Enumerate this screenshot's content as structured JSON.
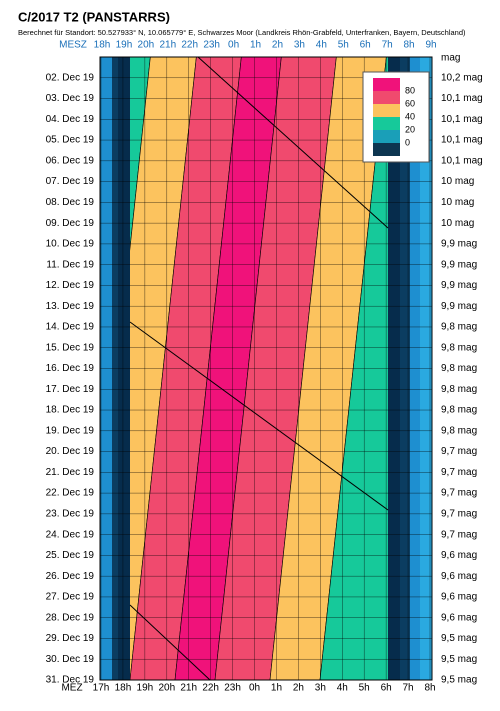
{
  "chart_data": {
    "type": "visibility",
    "title": "C/2017 T2 (PANSTARRS)",
    "subtitle": "Berechnet für Standort: 50.527933° N, 10.065779° E, Schwarzes Moor (Landkreis Rhön-Grabfeld, Unterfranken, Bayern, Deutschland)",
    "x_top_label": "MESZ",
    "x_top_ticks": [
      "18h",
      "19h",
      "20h",
      "21h",
      "22h",
      "23h",
      "0h",
      "1h",
      "2h",
      "3h",
      "4h",
      "5h",
      "6h",
      "7h",
      "8h",
      "9h"
    ],
    "x_label": "MEZ",
    "x_ticks": [
      "17h",
      "18h",
      "19h",
      "20h",
      "21h",
      "22h",
      "23h",
      "0h",
      "1h",
      "2h",
      "3h",
      "4h",
      "5h",
      "6h",
      "7h",
      "8h"
    ],
    "categories": [
      "02. Dec 19",
      "03. Dec 19",
      "04. Dec 19",
      "05. Dec 19",
      "06. Dec 19",
      "07. Dec 19",
      "08. Dec 19",
      "09. Dec 19",
      "10. Dec 19",
      "11. Dec 19",
      "12. Dec 19",
      "13. Dec 19",
      "14. Dec 19",
      "15. Dec 19",
      "16. Dec 19",
      "17. Dec 19",
      "18. Dec 19",
      "19. Dec 19",
      "20. Dec 19",
      "21. Dec 19",
      "22. Dec 19",
      "23. Dec 19",
      "24. Dec 19",
      "25. Dec 19",
      "26. Dec 19",
      "27. Dec 19",
      "28. Dec 19",
      "29. Dec 19",
      "30. Dec 19",
      "31. Dec 19"
    ],
    "y2_label": "mag",
    "magnitudes": [
      "10,2 mag",
      "10,1 mag",
      "10,1 mag",
      "10,1 mag",
      "10,1 mag",
      "10 mag",
      "10 mag",
      "10 mag",
      "9,9 mag",
      "9,9 mag",
      "9,9 mag",
      "9,9 mag",
      "9,8 mag",
      "9,8 mag",
      "9,8 mag",
      "9,8 mag",
      "9,8 mag",
      "9,8 mag",
      "9,7 mag",
      "9,7 mag",
      "9,7 mag",
      "9,7 mag",
      "9,7 mag",
      "9,6 mag",
      "9,6 mag",
      "9,6 mag",
      "9,6 mag",
      "9,5 mag",
      "9,5 mag",
      "9,5 mag"
    ],
    "legend_values": [
      80,
      60,
      40,
      20,
      0
    ],
    "legend_colors": [
      "#f0127a",
      "#f04a6e",
      "#fcc35e",
      "#16c99a",
      "#1a9fb8",
      "#0d3550"
    ]
  }
}
